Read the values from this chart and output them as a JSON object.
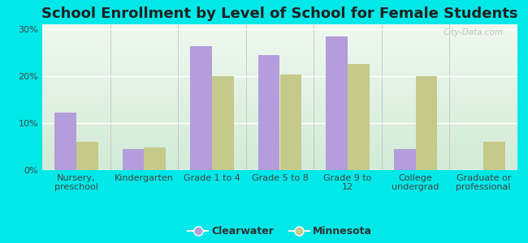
{
  "title": "School Enrollment by Level of School for Female Students",
  "categories": [
    "Nursery,\npreschool",
    "Kindergarten",
    "Grade 1 to 4",
    "Grade 5 to 8",
    "Grade 9 to\n12",
    "College\nundergrad",
    "Graduate or\nprofessional"
  ],
  "clearwater": [
    12.3,
    4.5,
    26.3,
    24.5,
    28.5,
    4.5,
    0.0
  ],
  "minnesota": [
    6.0,
    4.8,
    20.0,
    20.3,
    22.5,
    20.0,
    6.0
  ],
  "clearwater_color": "#b39ddb",
  "minnesota_color": "#c5c98a",
  "background_outer": "#00e8e8",
  "background_inner_top": "#f0f7f0",
  "background_inner_bottom": "#d4edda",
  "ylim": [
    0,
    31
  ],
  "yticks": [
    0,
    10,
    20,
    30
  ],
  "ytick_labels": [
    "0%",
    "10%",
    "20%",
    "30%"
  ],
  "bar_width": 0.32,
  "title_fontsize": 13,
  "legend_labels": [
    "Clearwater",
    "Minnesota"
  ],
  "watermark": "City-Data.com",
  "tick_label_fontsize": 8,
  "ytick_label_fontsize": 8
}
